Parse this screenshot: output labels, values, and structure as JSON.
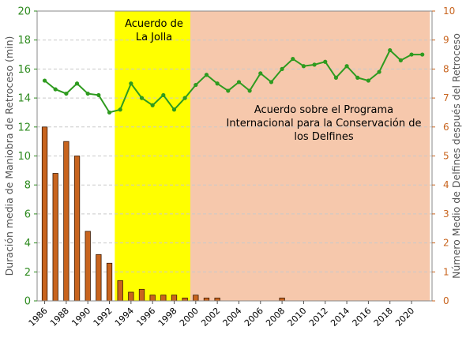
{
  "chart_data": {
    "type": "bar+line",
    "title": "",
    "xlabel": "",
    "ylabel_left": "Duración media de Maniobra de Retroceso (min)",
    "ylabel_right": "Número Medio de Delfines después del Retroceso",
    "ylim_left": [
      0,
      20
    ],
    "ylim_right": [
      0,
      10
    ],
    "yticks_left": [
      0,
      2,
      4,
      6,
      8,
      10,
      12,
      14,
      16,
      18,
      20
    ],
    "yticks_right": [
      0,
      1,
      2,
      3,
      4,
      5,
      6,
      7,
      8,
      9,
      10
    ],
    "xticks": [
      1986,
      1988,
      1990,
      1992,
      1994,
      1996,
      1998,
      2000,
      2002,
      2004,
      2006,
      2008,
      2010,
      2012,
      2014,
      2016,
      2018,
      2020
    ],
    "grid": "horizontal dashed",
    "years": [
      1986,
      1987,
      1988,
      1989,
      1990,
      1991,
      1992,
      1993,
      1994,
      1995,
      1996,
      1997,
      1998,
      1999,
      2000,
      2001,
      2002,
      2003,
      2004,
      2005,
      2006,
      2007,
      2008,
      2009,
      2010,
      2011,
      2012,
      2013,
      2014,
      2015,
      2016,
      2017,
      2018,
      2019,
      2020,
      2021
    ],
    "series": [
      {
        "axis": "right",
        "kind": "bar",
        "color": "#c8641e",
        "values": [
          6.0,
          4.4,
          5.5,
          5.0,
          2.4,
          1.6,
          1.3,
          0.7,
          0.3,
          0.4,
          0.2,
          0.2,
          0.2,
          0.1,
          0.2,
          0.1,
          0.1,
          0,
          0,
          0,
          0,
          0,
          0.1,
          0,
          0,
          0,
          0,
          0,
          0,
          0,
          0,
          0,
          0,
          0,
          0,
          0
        ]
      },
      {
        "axis": "left",
        "kind": "line",
        "color": "#2e9b1f",
        "values": [
          15.2,
          14.6,
          14.3,
          15.0,
          14.3,
          14.2,
          13.0,
          13.2,
          15.0,
          14.0,
          13.5,
          14.2,
          13.2,
          14.0,
          14.9,
          15.6,
          15.0,
          14.5,
          15.1,
          14.5,
          15.7,
          15.1,
          16.0,
          16.7,
          16.2,
          16.3,
          16.5,
          15.4,
          16.2,
          15.4,
          15.2,
          15.8,
          17.3,
          16.6,
          17.0,
          17.0
        ]
      }
    ],
    "regions": [
      {
        "from": 1992.5,
        "to": 1999.5,
        "color": "#ffff00",
        "label": [
          "Acuerdo de",
          "La Jolla"
        ]
      },
      {
        "from": 1999.5,
        "to": 2021.7,
        "color": "#f6c8ac",
        "label": [
          "Acuerdo sobre el Programa",
          "Internacional para la Conservación de",
          "los Delfines"
        ]
      }
    ]
  }
}
